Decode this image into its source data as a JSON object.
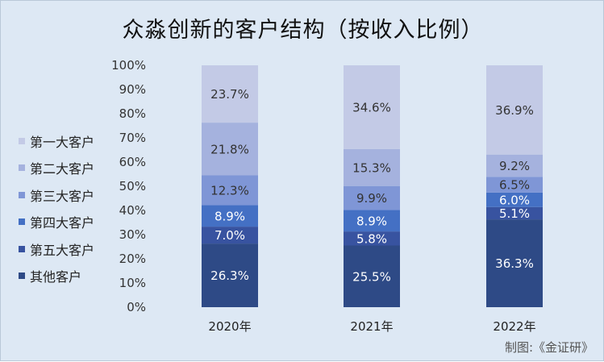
{
  "chart_data": {
    "type": "bar",
    "stacked": true,
    "title": "众淼创新的客户结构（按收入比例）",
    "categories": [
      "2020年",
      "2021年",
      "2022年"
    ],
    "ylim": [
      0,
      100
    ],
    "yticks": [
      "0%",
      "10%",
      "20%",
      "30%",
      "40%",
      "50%",
      "60%",
      "70%",
      "80%",
      "90%",
      "100%"
    ],
    "grid": false,
    "legend_position": "left",
    "series": [
      {
        "name": "其他客户",
        "color": "#2e4a86",
        "values": [
          26.3,
          25.5,
          36.3
        ],
        "labels": [
          "26.3%",
          "25.5%",
          "36.3%"
        ]
      },
      {
        "name": "第五大客户",
        "color": "#3853a0",
        "values": [
          7.0,
          5.8,
          5.1
        ],
        "labels": [
          "7.0%",
          "5.8%",
          "5.1%"
        ]
      },
      {
        "name": "第四大客户",
        "color": "#4470c4",
        "values": [
          8.9,
          8.9,
          6.0
        ],
        "labels": [
          "8.9%",
          "8.9%",
          "6.0%"
        ]
      },
      {
        "name": "第三大客户",
        "color": "#7f96d6",
        "values": [
          12.3,
          9.9,
          6.5
        ],
        "labels": [
          "12.3%",
          "9.9%",
          "6.5%"
        ]
      },
      {
        "name": "第二大客户",
        "color": "#a5b2de",
        "values": [
          21.8,
          15.3,
          9.2
        ],
        "labels": [
          "21.8%",
          "15.3%",
          "9.2%"
        ]
      },
      {
        "name": "第一大客户",
        "color": "#c3cae6",
        "values": [
          23.7,
          34.6,
          36.9
        ],
        "labels": [
          "23.7%",
          "34.6%",
          "36.9%"
        ]
      }
    ],
    "legend_order": [
      "第一大客户",
      "第二大客户",
      "第三大客户",
      "第四大客户",
      "第五大客户",
      "其他客户"
    ]
  },
  "source_note": "制图:《金证研》"
}
